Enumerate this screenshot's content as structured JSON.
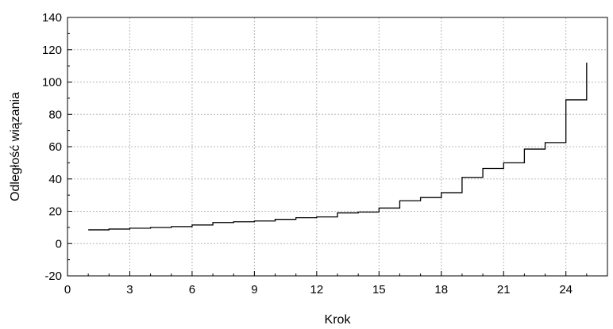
{
  "chart_data": {
    "type": "line",
    "step": true,
    "title": "",
    "xlabel": "Krok",
    "ylabel": "Odległość wiązania",
    "xlim": [
      0,
      26
    ],
    "ylim": [
      -20,
      140
    ],
    "xticks": [
      0,
      3,
      6,
      9,
      12,
      15,
      18,
      21,
      24
    ],
    "yticks": [
      -20,
      0,
      20,
      40,
      60,
      80,
      100,
      120,
      140
    ],
    "grid": true,
    "series": [
      {
        "color": "#000000",
        "x": [
          1,
          2,
          3,
          4,
          5,
          6,
          7,
          8,
          9,
          10,
          11,
          12,
          13,
          14,
          15,
          16,
          17,
          18,
          19,
          20,
          21,
          22,
          23,
          24,
          25
        ],
        "values": [
          8.5,
          9.0,
          9.5,
          10.0,
          10.5,
          11.5,
          13.0,
          13.5,
          14.0,
          15.0,
          16.0,
          16.5,
          19.0,
          19.5,
          22.0,
          26.5,
          28.5,
          31.5,
          41.0,
          46.5,
          50.0,
          58.5,
          62.5,
          89.0,
          112.0
        ]
      }
    ]
  }
}
